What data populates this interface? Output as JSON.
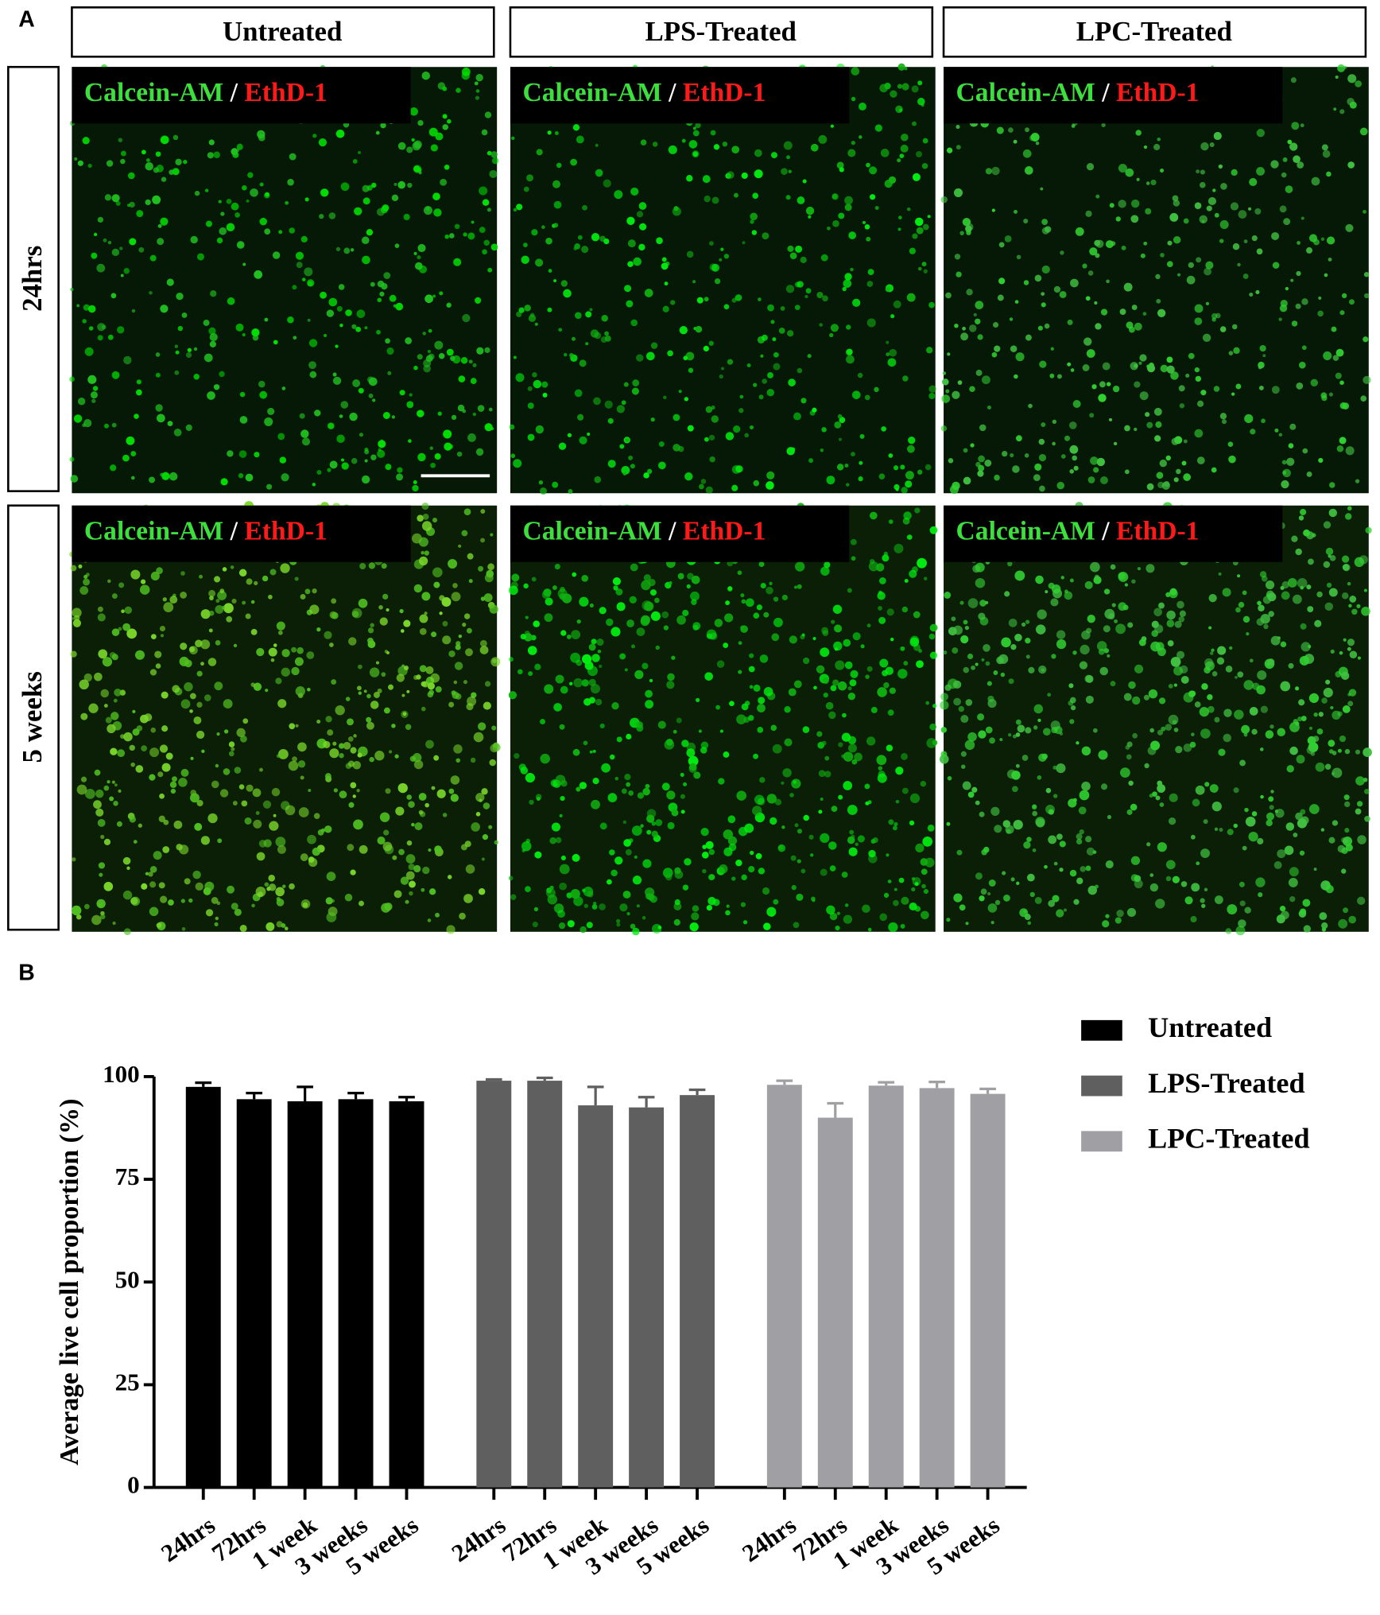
{
  "panel_labels": [
    "A",
    "B"
  ],
  "columns": [
    "Untreated",
    "LPS-Treated",
    "LPC-Treated"
  ],
  "rows": [
    "24hrs",
    "5 weeks"
  ],
  "stain": {
    "live": "Calcein-AM",
    "sep": "/",
    "dead": "EthD-1"
  },
  "chart_data": {
    "type": "bar",
    "ylabel": "Average live cell proportion (%)",
    "categories": [
      "24hrs",
      "72hrs",
      "1 week",
      "3 weeks",
      "5 weeks"
    ],
    "series": [
      {
        "name": "Untreated",
        "color": "#000000",
        "values": [
          97.5,
          94.5,
          94,
          94.5,
          94
        ],
        "errors": [
          1,
          1.5,
          3.5,
          1.5,
          1
        ]
      },
      {
        "name": "LPS-Treated",
        "color": "#5f5f5f",
        "values": [
          99,
          99,
          93,
          92.5,
          95.5
        ],
        "errors": [
          0.3,
          0.7,
          4.5,
          2.5,
          1.3
        ]
      },
      {
        "name": "LPC-Treated",
        "color": "#a0a0a4",
        "values": [
          98,
          90,
          97.8,
          97.2,
          95.8
        ],
        "errors": [
          1,
          3.5,
          0.8,
          1.5,
          1.2
        ]
      }
    ],
    "ylim": [
      0,
      100
    ],
    "yticks": [
      0,
      25,
      50,
      75,
      100
    ],
    "legend": "right"
  }
}
